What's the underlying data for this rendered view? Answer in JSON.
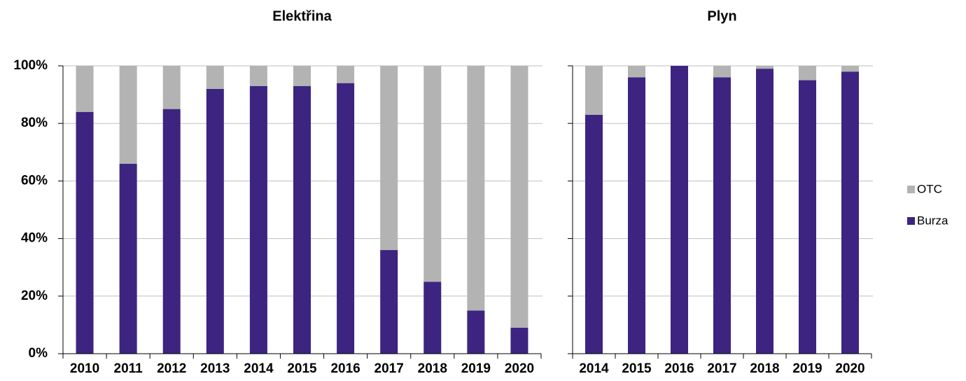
{
  "chart_data": [
    {
      "type": "stacked-bar",
      "title": "Elektřina",
      "categories": [
        "2010",
        "2011",
        "2012",
        "2013",
        "2014",
        "2015",
        "2016",
        "2017",
        "2018",
        "2019",
        "2020"
      ],
      "series": [
        {
          "name": "Burza",
          "color": "#3c2480",
          "values": [
            84,
            66,
            85,
            92,
            93,
            93,
            94,
            36,
            25,
            15,
            9
          ]
        },
        {
          "name": "OTC",
          "color": "#b3b3b3",
          "values": [
            16,
            34,
            15,
            8,
            7,
            7,
            6,
            64,
            75,
            85,
            91
          ]
        }
      ],
      "ylim": [
        0,
        100
      ],
      "yticks": [
        {
          "value": 0,
          "label": "0%"
        },
        {
          "value": 20,
          "label": "20%"
        },
        {
          "value": 40,
          "label": "40%"
        },
        {
          "value": 60,
          "label": "60%"
        },
        {
          "value": 80,
          "label": "80%"
        },
        {
          "value": 100,
          "label": "100%"
        }
      ],
      "grid": true
    },
    {
      "type": "stacked-bar",
      "title": "Plyn",
      "categories": [
        "2014",
        "2015",
        "2016",
        "2017",
        "2018",
        "2019",
        "2020"
      ],
      "series": [
        {
          "name": "Burza",
          "color": "#3c2480",
          "values": [
            83,
            96,
            100,
            96,
            99,
            95,
            98
          ]
        },
        {
          "name": "OTC",
          "color": "#b3b3b3",
          "values": [
            17,
            4,
            0,
            4,
            1,
            5,
            2
          ]
        }
      ],
      "ylim": [
        0,
        100
      ],
      "yticks": [
        0,
        20,
        40,
        60,
        80,
        100
      ],
      "grid": true,
      "legend": "right"
    }
  ]
}
